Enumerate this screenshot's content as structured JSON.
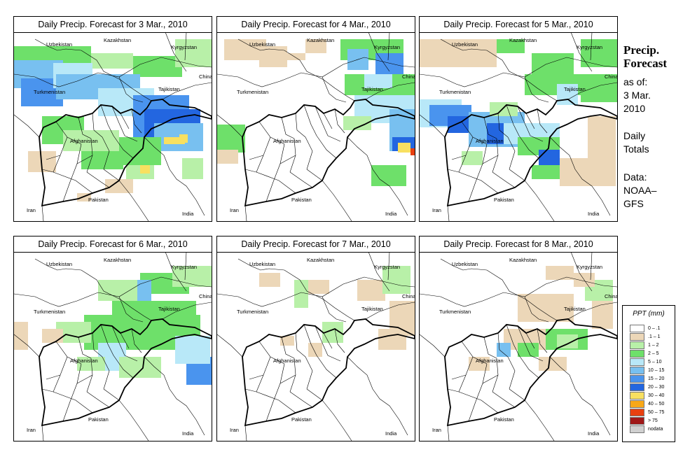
{
  "panels": [
    {
      "title": "Daily Precip. Forecast for  3 Mar., 2010"
    },
    {
      "title": "Daily Precip. Forecast for  4 Mar., 2010"
    },
    {
      "title": "Daily Precip. Forecast for  5 Mar., 2010"
    },
    {
      "title": "Daily Precip. Forecast for  6 Mar., 2010"
    },
    {
      "title": "Daily Precip. Forecast for  7 Mar., 2010"
    },
    {
      "title": "Daily Precip. Forecast for  8 Mar., 2010"
    }
  ],
  "map_labels": {
    "uzbekistan": "Uzbekistan",
    "kazakhstan": "Kazakhstan",
    "kyrgyzstan": "Kyrgyzstan",
    "turkmenistan": "Turkmenistan",
    "tajikistan": "Tajikistan",
    "china": "China",
    "afghanistan": "Afghanistan",
    "pakistan": "Pakistan",
    "iran": "Iran",
    "india": "India"
  },
  "sidebar": {
    "title_line1": "Precip.",
    "title_line2": "Forecast",
    "asof": "as of:",
    "date_line1": "3 Mar.",
    "date_line2": "2010",
    "totals_line1": "Daily",
    "totals_line2": "Totals",
    "data_line1": "Data:",
    "data_line2": "NOAA–",
    "data_line3": "GFS"
  },
  "legend": {
    "title": "PPT (mm)",
    "classes": [
      {
        "label": "0 – .1",
        "color": "#ffffff"
      },
      {
        "label": ".1 – 1",
        "color": "#ecd7b8"
      },
      {
        "label": "1 – 2",
        "color": "#b8f0a8"
      },
      {
        "label": "2 – 5",
        "color": "#6ee06a"
      },
      {
        "label": "5 – 10",
        "color": "#b8e8f8"
      },
      {
        "label": "10 – 15",
        "color": "#78c0f0"
      },
      {
        "label": "15 – 20",
        "color": "#4a94ee"
      },
      {
        "label": "20 – 30",
        "color": "#2366e0"
      },
      {
        "label": "30 – 40",
        "color": "#f8e060"
      },
      {
        "label": "40 – 50",
        "color": "#f8a818"
      },
      {
        "label": "50 – 75",
        "color": "#e84010"
      },
      {
        "label": "> 75",
        "color": "#a01818"
      },
      {
        "label": "nodata",
        "color": "#d0d0d0"
      }
    ]
  }
}
